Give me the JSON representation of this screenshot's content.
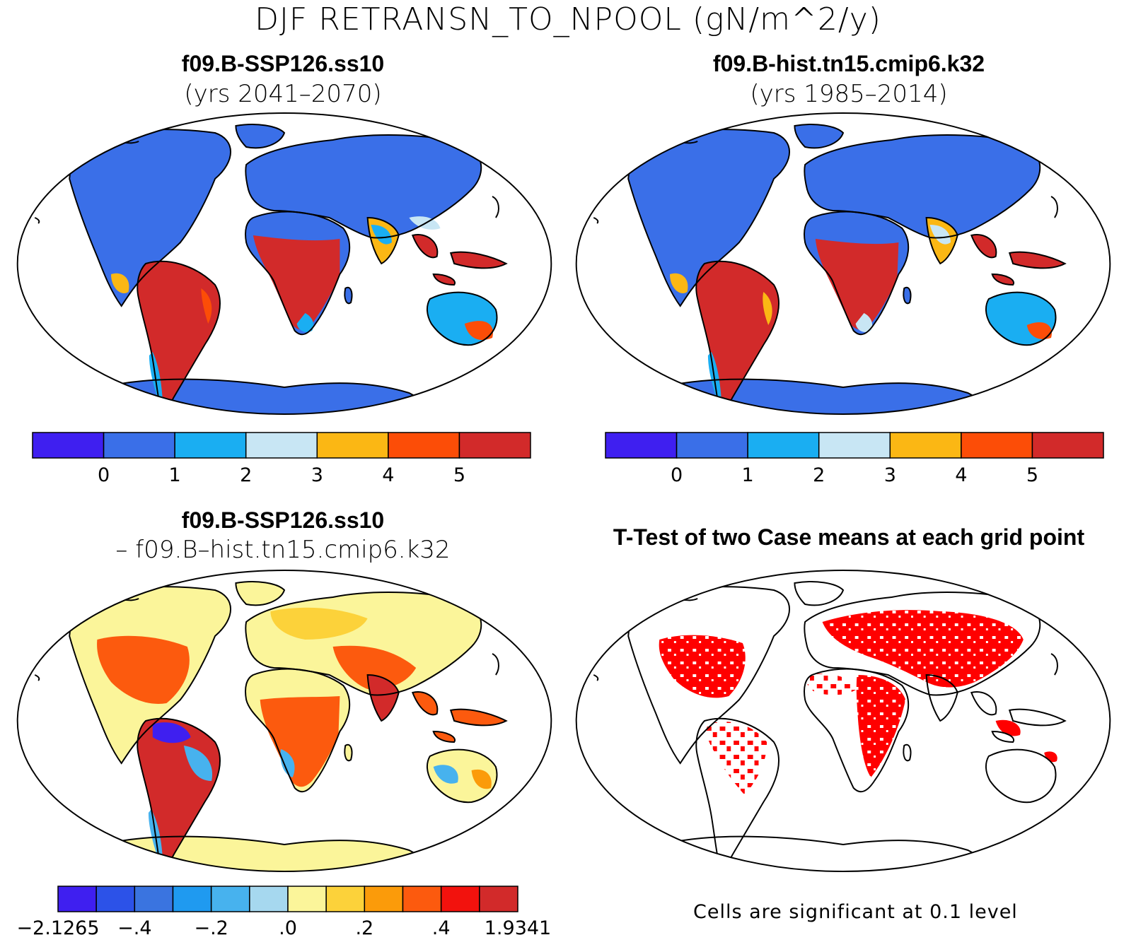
{
  "title": "DJF RETRANSN_TO_NPOOL (gN/m^2/y)",
  "panels": {
    "top_left": {
      "title": "f09.B-SSP126.ss10",
      "subtitle": "(yrs 2041–2070)"
    },
    "top_right": {
      "title": "f09.B-hist.tn15.cmip6.k32",
      "subtitle": "(yrs 1985–2014)"
    },
    "bottom_left": {
      "title": "f09.B-SSP126.ss10",
      "subtitle": "– f09.B–hist.tn15.cmip6.k32"
    },
    "bottom_right": {
      "title": "T-Test of two Case means at each grid point"
    }
  },
  "colorbar_abs": {
    "colors": [
      "#3f1ff0",
      "#3a6fe8",
      "#1aaef2",
      "#c8e6f4",
      "#fbb714",
      "#fc4d07",
      "#d22a2a"
    ],
    "labels": [
      "0",
      "1",
      "2",
      "3",
      "4",
      "5"
    ]
  },
  "colorbar_diff": {
    "colors": [
      "#3f1ff0",
      "#2c52e8",
      "#3a74e0",
      "#1f9af0",
      "#47b2ee",
      "#a6d8ef",
      "#fbf59a",
      "#fcd23a",
      "#fb9b0a",
      "#fc5a0e",
      "#f2120d",
      "#d22a2a"
    ],
    "labels": [
      "−2.1265",
      "−.4",
      "−.2",
      ".0",
      ".2",
      ".4",
      "1.9341"
    ]
  },
  "significance_note": "Cells are significant at 0.1 level"
}
